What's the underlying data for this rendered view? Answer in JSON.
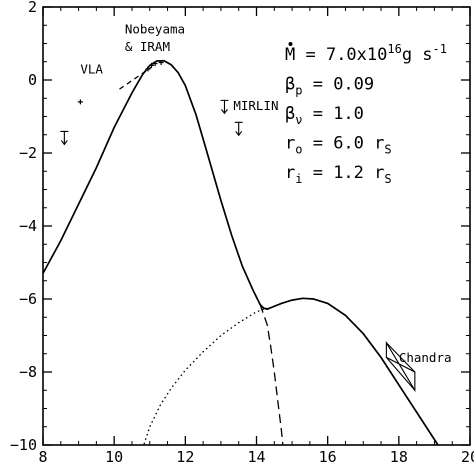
{
  "chart_data": {
    "type": "line",
    "title": "",
    "xlabel": "",
    "ylabel": "",
    "xlim": [
      8,
      20
    ],
    "ylim": [
      -10,
      2
    ],
    "x_ticks": [
      8,
      10,
      12,
      14,
      16,
      18,
      20
    ],
    "y_ticks": [
      2,
      0,
      -2,
      -4,
      -6,
      -8,
      -10
    ],
    "x_tick_labels": [
      "8",
      "10",
      "12",
      "14",
      "16",
      "18",
      "20"
    ],
    "y_tick_labels": [
      "2",
      "0",
      "−2",
      "−4",
      "−6",
      "−8",
      "−10"
    ],
    "grid": false,
    "series": [
      {
        "style": "solid",
        "x": [
          8.0,
          8.5,
          9.0,
          9.5,
          10.0,
          10.5,
          10.8,
          11.0,
          11.2,
          11.4,
          11.6,
          11.8,
          12.0,
          12.3,
          12.6,
          13.0,
          13.3,
          13.6,
          13.9,
          14.1,
          14.2,
          14.3,
          14.45,
          14.7,
          15.0,
          15.3,
          15.6,
          16.0,
          16.5,
          17.0,
          17.5,
          18.0,
          18.5,
          19.0,
          19.3,
          19.5
        ],
        "y": [
          -5.3,
          -4.4,
          -3.4,
          -2.4,
          -1.3,
          -0.35,
          0.15,
          0.4,
          0.52,
          0.53,
          0.42,
          0.2,
          -0.15,
          -0.95,
          -1.95,
          -3.3,
          -4.25,
          -5.1,
          -5.75,
          -6.15,
          -6.25,
          -6.28,
          -6.22,
          -6.12,
          -6.03,
          -5.98,
          -6.0,
          -6.12,
          -6.45,
          -6.95,
          -7.6,
          -8.35,
          -9.1,
          -9.85,
          -10.3,
          -10.6
        ]
      },
      {
        "style": "dashed",
        "x": [
          13.6,
          13.9,
          14.1,
          14.3,
          14.4,
          14.5,
          14.6,
          14.7,
          14.75
        ],
        "y": [
          -5.1,
          -5.75,
          -6.15,
          -6.7,
          -7.3,
          -8.0,
          -8.8,
          -9.6,
          -10.1
        ]
      },
      {
        "style": "dotted",
        "x": [
          10.8,
          11.0,
          11.3,
          11.6,
          12.0,
          12.5,
          13.0,
          13.5,
          14.0,
          14.3
        ],
        "y": [
          -10.1,
          -9.5,
          -8.9,
          -8.45,
          -7.95,
          -7.45,
          -7.0,
          -6.65,
          -6.35,
          -6.25
        ]
      },
      {
        "style": "dashed-short",
        "x": [
          10.15,
          10.45,
          10.75,
          11.05
        ],
        "y": [
          -0.25,
          -0.05,
          0.15,
          0.35
        ]
      }
    ],
    "data_points": [
      {
        "x": 9.05,
        "y": -0.6,
        "type": "point"
      },
      {
        "x": 10.95,
        "y": 0.3,
        "type": "point"
      },
      {
        "x": 11.05,
        "y": 0.4,
        "type": "point"
      },
      {
        "x": 11.15,
        "y": 0.45,
        "type": "point"
      },
      {
        "x": 11.32,
        "y": 0.48,
        "type": "point"
      }
    ],
    "upper_limits": [
      {
        "x": 8.6,
        "y": -1.6
      },
      {
        "x": 13.1,
        "y": -0.75
      },
      {
        "x": 13.5,
        "y": -1.35
      }
    ],
    "chandra_bowtie": {
      "x": [
        17.65,
        18.45
      ],
      "upper_y": [
        -7.2,
        -8.5
      ],
      "lower_y": [
        -7.6,
        -8.0
      ],
      "pivot": {
        "x": 18.05,
        "y": -7.8
      }
    },
    "annotations": [
      {
        "text": "VLA",
        "x": 9.05,
        "y": 0.18
      },
      {
        "text": "Nobeyama",
        "x": 10.3,
        "y": 1.28
      },
      {
        "text": "& IRAM",
        "x": 10.3,
        "y": 0.8
      },
      {
        "text": "MIRLIN",
        "x": 13.35,
        "y": -0.82
      },
      {
        "text": "Chandra",
        "x": 18.0,
        "y": -7.72
      }
    ],
    "parameters": [
      {
        "name": "M",
        "sub": "",
        "eq": " = 7.0x10",
        "sup": "16",
        "unit": "g s",
        "unit_sup": "-1"
      },
      {
        "name": "β",
        "sub": "p",
        "eq": " = 0.09",
        "sup": "",
        "unit": "",
        "unit_sup": ""
      },
      {
        "name": "β",
        "sub": "ν",
        "eq": " = 1.0",
        "sup": "",
        "unit": "",
        "unit_sup": ""
      },
      {
        "name": "r",
        "sub": "o",
        "eq": " = 6.0 r",
        "sup": "",
        "unit": "",
        "unit_sup": "",
        "unit_sub": "S"
      },
      {
        "name": "r",
        "sub": "i",
        "eq": " = 1.2 r",
        "sup": "",
        "unit": "",
        "unit_sup": "",
        "unit_sub": "S"
      }
    ]
  }
}
